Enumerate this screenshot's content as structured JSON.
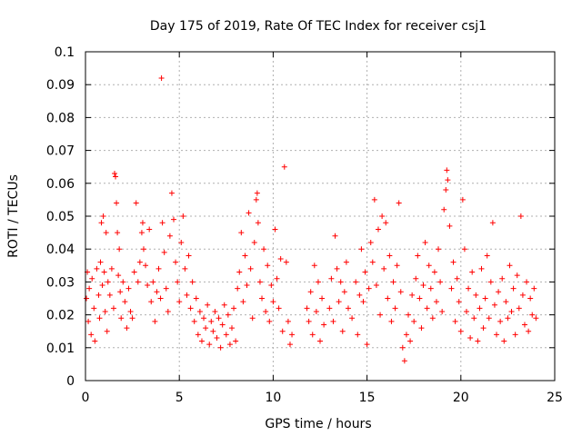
{
  "chart_data": {
    "type": "scatter",
    "title": "Day 175 of 2019, Rate Of TEC Index for receiver csj1",
    "xlabel": "GPS time / hours",
    "ylabel": "ROTI / TECUs",
    "xlim": [
      0,
      25
    ],
    "ylim": [
      0,
      0.1
    ],
    "grid": true,
    "marker": "+",
    "color": "#ff0000",
    "x_ticks": [
      0,
      5,
      10,
      15,
      20,
      25
    ],
    "x_tick_labels": [
      "0",
      "5",
      "10",
      "15",
      "20",
      "25"
    ],
    "y_ticks": [
      0,
      0.01,
      0.02,
      0.03,
      0.04,
      0.05,
      0.06,
      0.07,
      0.08,
      0.09,
      0.1
    ],
    "y_tick_labels": [
      "0",
      "0.01",
      "0.02",
      "0.03",
      "0.04",
      "0.05",
      "0.06",
      "0.07",
      "0.08",
      "0.09",
      "0.1"
    ],
    "series": [
      {
        "name": "ROTI",
        "points": [
          [
            0.05,
            0.025
          ],
          [
            0.1,
            0.033
          ],
          [
            0.15,
            0.018
          ],
          [
            0.2,
            0.028
          ],
          [
            0.3,
            0.014
          ],
          [
            0.35,
            0.031
          ],
          [
            0.45,
            0.022
          ],
          [
            0.5,
            0.012
          ],
          [
            0.6,
            0.034
          ],
          [
            0.7,
            0.026
          ],
          [
            0.75,
            0.019
          ],
          [
            0.8,
            0.036
          ],
          [
            0.85,
            0.048
          ],
          [
            0.9,
            0.029
          ],
          [
            0.95,
            0.05
          ],
          [
            1.0,
            0.033
          ],
          [
            1.05,
            0.021
          ],
          [
            1.1,
            0.045
          ],
          [
            1.15,
            0.015
          ],
          [
            1.2,
            0.03
          ],
          [
            1.3,
            0.026
          ],
          [
            1.4,
            0.034
          ],
          [
            1.5,
            0.022
          ],
          [
            1.55,
            0.063
          ],
          [
            1.6,
            0.062
          ],
          [
            1.65,
            0.054
          ],
          [
            1.7,
            0.045
          ],
          [
            1.75,
            0.032
          ],
          [
            1.8,
            0.04
          ],
          [
            1.85,
            0.027
          ],
          [
            1.9,
            0.019
          ],
          [
            2.0,
            0.03
          ],
          [
            2.1,
            0.024
          ],
          [
            2.2,
            0.016
          ],
          [
            2.3,
            0.028
          ],
          [
            2.4,
            0.021
          ],
          [
            2.5,
            0.019
          ],
          [
            2.6,
            0.033
          ],
          [
            2.7,
            0.054
          ],
          [
            2.8,
            0.03
          ],
          [
            2.9,
            0.036
          ],
          [
            3.0,
            0.045
          ],
          [
            3.05,
            0.048
          ],
          [
            3.1,
            0.04
          ],
          [
            3.2,
            0.035
          ],
          [
            3.3,
            0.029
          ],
          [
            3.4,
            0.046
          ],
          [
            3.5,
            0.024
          ],
          [
            3.6,
            0.03
          ],
          [
            3.7,
            0.018
          ],
          [
            3.8,
            0.027
          ],
          [
            3.9,
            0.034
          ],
          [
            4.0,
            0.025
          ],
          [
            4.05,
            0.092
          ],
          [
            4.1,
            0.048
          ],
          [
            4.2,
            0.039
          ],
          [
            4.3,
            0.028
          ],
          [
            4.4,
            0.021
          ],
          [
            4.5,
            0.044
          ],
          [
            4.6,
            0.057
          ],
          [
            4.7,
            0.049
          ],
          [
            4.8,
            0.036
          ],
          [
            4.9,
            0.03
          ],
          [
            5.0,
            0.024
          ],
          [
            5.1,
            0.042
          ],
          [
            5.2,
            0.05
          ],
          [
            5.3,
            0.034
          ],
          [
            5.4,
            0.026
          ],
          [
            5.5,
            0.038
          ],
          [
            5.6,
            0.022
          ],
          [
            5.7,
            0.03
          ],
          [
            5.8,
            0.018
          ],
          [
            5.9,
            0.025
          ],
          [
            6.0,
            0.014
          ],
          [
            6.1,
            0.021
          ],
          [
            6.2,
            0.012
          ],
          [
            6.3,
            0.019
          ],
          [
            6.4,
            0.016
          ],
          [
            6.5,
            0.023
          ],
          [
            6.6,
            0.011
          ],
          [
            6.7,
            0.018
          ],
          [
            6.8,
            0.015
          ],
          [
            6.9,
            0.021
          ],
          [
            7.0,
            0.013
          ],
          [
            7.1,
            0.019
          ],
          [
            7.2,
            0.01
          ],
          [
            7.3,
            0.017
          ],
          [
            7.4,
            0.023
          ],
          [
            7.5,
            0.014
          ],
          [
            7.6,
            0.02
          ],
          [
            7.7,
            0.011
          ],
          [
            7.8,
            0.016
          ],
          [
            7.9,
            0.022
          ],
          [
            8.0,
            0.012
          ],
          [
            8.1,
            0.028
          ],
          [
            8.2,
            0.033
          ],
          [
            8.3,
            0.045
          ],
          [
            8.4,
            0.024
          ],
          [
            8.5,
            0.038
          ],
          [
            8.6,
            0.029
          ],
          [
            8.7,
            0.051
          ],
          [
            8.8,
            0.034
          ],
          [
            8.9,
            0.019
          ],
          [
            9.0,
            0.042
          ],
          [
            9.1,
            0.055
          ],
          [
            9.15,
            0.057
          ],
          [
            9.2,
            0.048
          ],
          [
            9.3,
            0.03
          ],
          [
            9.4,
            0.025
          ],
          [
            9.5,
            0.04
          ],
          [
            9.6,
            0.021
          ],
          [
            9.7,
            0.035
          ],
          [
            9.8,
            0.018
          ],
          [
            9.9,
            0.029
          ],
          [
            10.0,
            0.024
          ],
          [
            10.1,
            0.046
          ],
          [
            10.2,
            0.031
          ],
          [
            10.3,
            0.022
          ],
          [
            10.4,
            0.037
          ],
          [
            10.5,
            0.015
          ],
          [
            10.6,
            0.065
          ],
          [
            10.7,
            0.036
          ],
          [
            10.8,
            0.018
          ],
          [
            10.9,
            0.011
          ],
          [
            11.0,
            0.014
          ],
          [
            11.8,
            0.022
          ],
          [
            11.9,
            0.018
          ],
          [
            12.0,
            0.027
          ],
          [
            12.1,
            0.014
          ],
          [
            12.2,
            0.035
          ],
          [
            12.3,
            0.021
          ],
          [
            12.4,
            0.03
          ],
          [
            12.5,
            0.012
          ],
          [
            12.6,
            0.025
          ],
          [
            12.7,
            0.017
          ],
          [
            13.0,
            0.022
          ],
          [
            13.1,
            0.031
          ],
          [
            13.2,
            0.018
          ],
          [
            13.3,
            0.044
          ],
          [
            13.4,
            0.034
          ],
          [
            13.5,
            0.024
          ],
          [
            13.6,
            0.03
          ],
          [
            13.7,
            0.015
          ],
          [
            13.8,
            0.027
          ],
          [
            13.9,
            0.036
          ],
          [
            14.0,
            0.022
          ],
          [
            14.2,
            0.019
          ],
          [
            14.4,
            0.03
          ],
          [
            14.5,
            0.014
          ],
          [
            14.6,
            0.026
          ],
          [
            14.7,
            0.04
          ],
          [
            14.8,
            0.024
          ],
          [
            14.9,
            0.033
          ],
          [
            15.0,
            0.011
          ],
          [
            15.1,
            0.028
          ],
          [
            15.2,
            0.042
          ],
          [
            15.3,
            0.036
          ],
          [
            15.4,
            0.055
          ],
          [
            15.5,
            0.029
          ],
          [
            15.6,
            0.046
          ],
          [
            15.7,
            0.02
          ],
          [
            15.8,
            0.05
          ],
          [
            15.9,
            0.034
          ],
          [
            16.0,
            0.048
          ],
          [
            16.1,
            0.025
          ],
          [
            16.2,
            0.038
          ],
          [
            16.3,
            0.018
          ],
          [
            16.4,
            0.03
          ],
          [
            16.5,
            0.022
          ],
          [
            16.6,
            0.035
          ],
          [
            16.7,
            0.054
          ],
          [
            16.8,
            0.027
          ],
          [
            16.9,
            0.01
          ],
          [
            17.0,
            0.006
          ],
          [
            17.1,
            0.014
          ],
          [
            17.2,
            0.02
          ],
          [
            17.3,
            0.012
          ],
          [
            17.4,
            0.026
          ],
          [
            17.5,
            0.018
          ],
          [
            17.6,
            0.031
          ],
          [
            17.7,
            0.038
          ],
          [
            17.8,
            0.025
          ],
          [
            17.9,
            0.016
          ],
          [
            18.0,
            0.029
          ],
          [
            18.1,
            0.042
          ],
          [
            18.2,
            0.022
          ],
          [
            18.3,
            0.035
          ],
          [
            18.4,
            0.028
          ],
          [
            18.5,
            0.019
          ],
          [
            18.6,
            0.033
          ],
          [
            18.7,
            0.024
          ],
          [
            18.8,
            0.04
          ],
          [
            18.9,
            0.03
          ],
          [
            19.0,
            0.021
          ],
          [
            19.1,
            0.052
          ],
          [
            19.2,
            0.058
          ],
          [
            19.25,
            0.064
          ],
          [
            19.3,
            0.061
          ],
          [
            19.4,
            0.047
          ],
          [
            19.5,
            0.028
          ],
          [
            19.6,
            0.036
          ],
          [
            19.7,
            0.018
          ],
          [
            19.8,
            0.031
          ],
          [
            19.9,
            0.024
          ],
          [
            20.0,
            0.015
          ],
          [
            20.1,
            0.055
          ],
          [
            20.2,
            0.04
          ],
          [
            20.3,
            0.021
          ],
          [
            20.4,
            0.028
          ],
          [
            20.5,
            0.013
          ],
          [
            20.6,
            0.033
          ],
          [
            20.7,
            0.019
          ],
          [
            20.8,
            0.026
          ],
          [
            20.9,
            0.012
          ],
          [
            21.0,
            0.022
          ],
          [
            21.1,
            0.034
          ],
          [
            21.2,
            0.016
          ],
          [
            21.3,
            0.025
          ],
          [
            21.4,
            0.038
          ],
          [
            21.5,
            0.019
          ],
          [
            21.6,
            0.03
          ],
          [
            21.7,
            0.048
          ],
          [
            21.8,
            0.023
          ],
          [
            21.9,
            0.014
          ],
          [
            22.0,
            0.027
          ],
          [
            22.1,
            0.018
          ],
          [
            22.2,
            0.031
          ],
          [
            22.3,
            0.012
          ],
          [
            22.4,
            0.024
          ],
          [
            22.5,
            0.019
          ],
          [
            22.6,
            0.035
          ],
          [
            22.7,
            0.021
          ],
          [
            22.8,
            0.028
          ],
          [
            22.9,
            0.014
          ],
          [
            23.0,
            0.032
          ],
          [
            23.1,
            0.022
          ],
          [
            23.2,
            0.05
          ],
          [
            23.3,
            0.026
          ],
          [
            23.4,
            0.017
          ],
          [
            23.5,
            0.03
          ],
          [
            23.6,
            0.015
          ],
          [
            23.7,
            0.025
          ],
          [
            23.8,
            0.02
          ],
          [
            23.9,
            0.028
          ],
          [
            24.0,
            0.019
          ]
        ]
      }
    ]
  }
}
